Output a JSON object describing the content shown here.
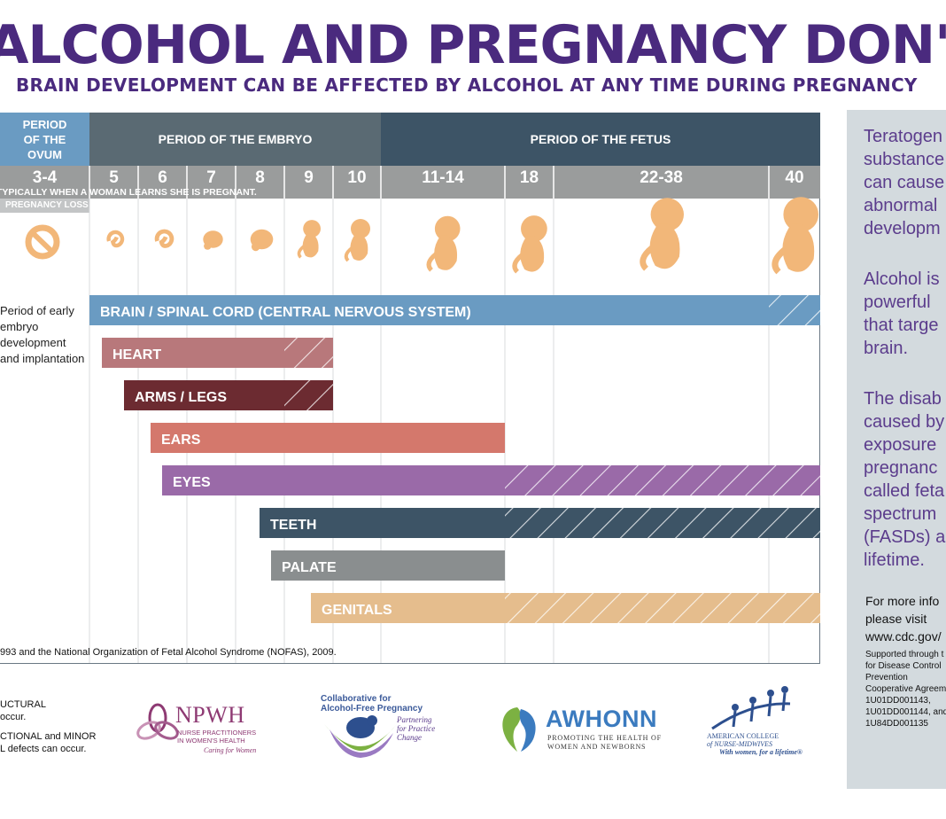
{
  "header": {
    "title": "ALCOHOL AND PREGNANCY DON'T MIX",
    "subtitle": "BRAIN DEVELOPMENT CAN BE AFFECTED BY ALCOHOL AT ANY TIME DURING PREGNANCY"
  },
  "colors": {
    "purple": "#4a2a7e",
    "ovum": "#6a9bc2",
    "embryo": "#5a6a73",
    "fetus": "#3d5466",
    "week_band": "#9a9c9c",
    "note_band": "#c3c5c6"
  },
  "chart_data": {
    "type": "timeline",
    "periods": [
      {
        "name": "PERIOD OF THE OVUM",
        "weeks": [
          "3-4"
        ]
      },
      {
        "name": "PERIOD OF THE EMBRYO",
        "weeks": [
          "5",
          "6",
          "7",
          "8",
          "9",
          "10"
        ]
      },
      {
        "name": "PERIOD OF THE FETUS",
        "weeks": [
          "11-14",
          "18",
          "22-38",
          "40"
        ]
      }
    ],
    "weeks": [
      "3-4",
      "5",
      "6",
      "7",
      "8",
      "9",
      "10",
      "11-14",
      "18",
      "22-38",
      "40"
    ],
    "notes": {
      "learns_pregnant": "TYPICALLY WHEN A WOMAN LEARNS SHE IS PREGNANT.",
      "pregnancy_loss": "PREGNANCY LOSS"
    },
    "early_embryo_note": [
      "Period of early",
      "embryo",
      "development",
      "and implantation"
    ],
    "organs": [
      {
        "name": "BRAIN / SPINAL CORD (CENTRAL NERVOUS SYSTEM)",
        "start_week": "5",
        "structural_end_week": "22-38",
        "end_week": "40",
        "color": "#6a9bc2"
      },
      {
        "name": "HEART",
        "start_week": "5",
        "structural_end_week": "8",
        "end_week": "10",
        "color": "#b8787b"
      },
      {
        "name": "ARMS / LEGS",
        "start_week": "6",
        "structural_end_week": "8",
        "end_week": "10",
        "color": "#6c2b31"
      },
      {
        "name": "EARS",
        "start_week": "6",
        "structural_end_week": "11-14",
        "end_week": "18",
        "color": "#d4786c"
      },
      {
        "name": "EYES",
        "start_week": "6",
        "structural_end_week": "11-14",
        "end_week": "40",
        "color": "#9a6aa8"
      },
      {
        "name": "TEETH",
        "start_week": "8",
        "structural_end_week": "11-14",
        "end_week": "40",
        "color": "#3d5466"
      },
      {
        "name": "PALATE",
        "start_week": "8",
        "structural_end_week": "11-14",
        "end_week": "18",
        "color": "#8a8e8f"
      },
      {
        "name": "GENITALS",
        "start_week": "9",
        "structural_end_week": "11-14",
        "end_week": "40",
        "color": "#e5bd8d"
      }
    ]
  },
  "source": "993 and the National Organization of Fetal Alcohol Syndrome (NOFAS), 2009.",
  "legend": {
    "structural": [
      "UCTURAL",
      "occur."
    ],
    "functional": [
      "CTIONAL and MINOR",
      "L defects can occur."
    ]
  },
  "logos": {
    "npwh": {
      "name": "NPWH",
      "line1": "NURSE PRACTITIONERS",
      "line2": "IN WOMEN'S HEALTH",
      "tagline": "Caring for Women"
    },
    "collaborative": {
      "line1": "Collaborative for",
      "line2": "Alcohol-Free Pregnancy",
      "tag1": "Partnering",
      "tag2": "for Practice",
      "tag3": "Change"
    },
    "awhonn": {
      "name": "AWHONN",
      "line1": "PROMOTING THE HEALTH OF",
      "line2": "WOMEN AND NEWBORNS"
    },
    "acnm": {
      "line1": "AMERICAN COLLEGE",
      "line2": "of NURSE-MIDWIVES",
      "tagline": "With women, for a lifetime®"
    }
  },
  "side": {
    "p1": [
      "Teratogen",
      "substance",
      "can cause",
      "abnormal",
      "developm"
    ],
    "p2": [
      "Alcohol is",
      "powerful",
      "that targe",
      "brain."
    ],
    "p3": [
      "The disab",
      "caused by",
      "exposure",
      "pregnanc",
      "called feta",
      "spectrum",
      "(FASDs) a",
      "lifetime."
    ],
    "info": [
      "For more info",
      "please visit",
      "www.cdc.gov/"
    ],
    "support": [
      "Supported through t",
      "for Disease Control",
      "Prevention",
      "Cooperative Agreem",
      "1U01DD001143,",
      "1U01DD001144, and",
      "1U84DD001135"
    ]
  }
}
